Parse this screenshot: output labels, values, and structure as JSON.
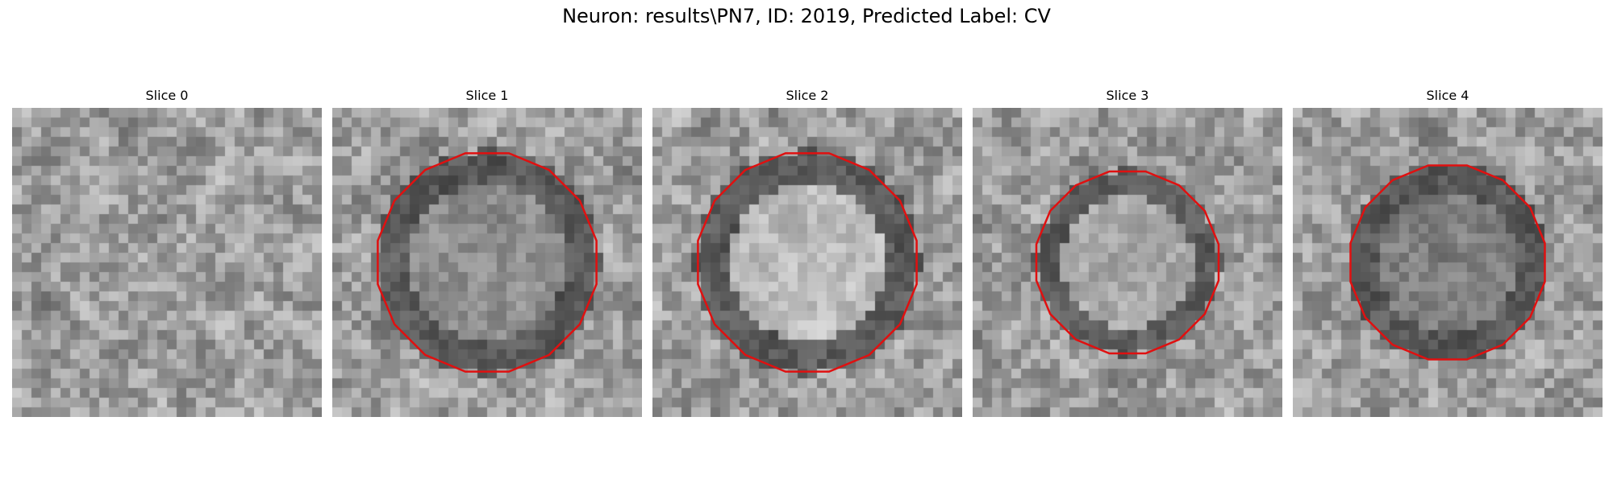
{
  "figure": {
    "title": "Neuron: results\\PN7, ID: 2019, Predicted Label: CV",
    "contour_color": "#e01010"
  },
  "panels": [
    {
      "title": "Slice 0",
      "has_contour": false,
      "contour_radius": 0,
      "center_brightness": 0.5
    },
    {
      "title": "Slice 1",
      "has_contour": true,
      "contour_radius": 0.36,
      "center_brightness": 0.45
    },
    {
      "title": "Slice 2",
      "has_contour": true,
      "contour_radius": 0.36,
      "center_brightness": 0.95
    },
    {
      "title": "Slice 3",
      "has_contour": true,
      "contour_radius": 0.3,
      "center_brightness": 0.75
    },
    {
      "title": "Slice 4",
      "has_contour": true,
      "contour_radius": 0.32,
      "center_brightness": 0.3
    }
  ]
}
